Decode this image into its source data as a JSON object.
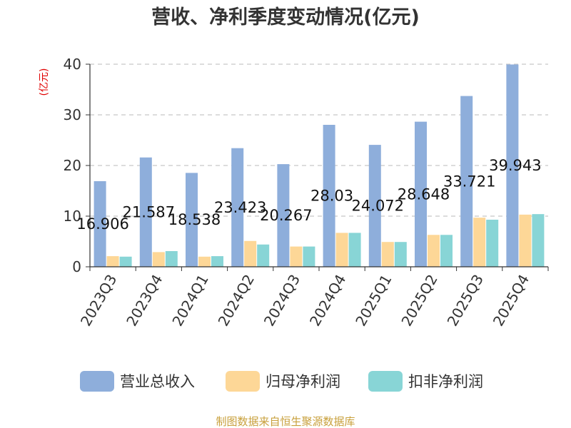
{
  "chart_data": {
    "type": "bar",
    "title": "营收、净利季度变动情况(亿元)",
    "ylabel": "(亿元)",
    "ylim": [
      0,
      40
    ],
    "yticks": [
      0,
      10,
      20,
      30,
      40
    ],
    "grid": true,
    "legend_position": "bottom",
    "categories": [
      "2023Q3",
      "2023Q4",
      "2024Q1",
      "2024Q2",
      "2024Q3",
      "2024Q4",
      "2025Q1",
      "2025Q2",
      "2025Q3",
      "2025Q4"
    ],
    "series": [
      {
        "name": "营业总收入",
        "color": "#8eaedb",
        "values": [
          16.906,
          21.587,
          18.538,
          23.423,
          20.267,
          28.03,
          24.072,
          28.648,
          33.721,
          39.943
        ],
        "labeled": true
      },
      {
        "name": "归母净利润",
        "color": "#fdd797",
        "values": [
          2.1,
          2.9,
          2.0,
          5.1,
          4.0,
          6.7,
          4.9,
          6.3,
          9.7,
          10.3
        ],
        "labeled": false
      },
      {
        "name": "扣非净利润",
        "color": "#88d5d6",
        "values": [
          2.0,
          3.1,
          2.1,
          4.4,
          4.0,
          6.7,
          4.9,
          6.3,
          9.3,
          10.4
        ],
        "labeled": false
      }
    ]
  },
  "source": "制图数据来自恒生聚源数据库"
}
